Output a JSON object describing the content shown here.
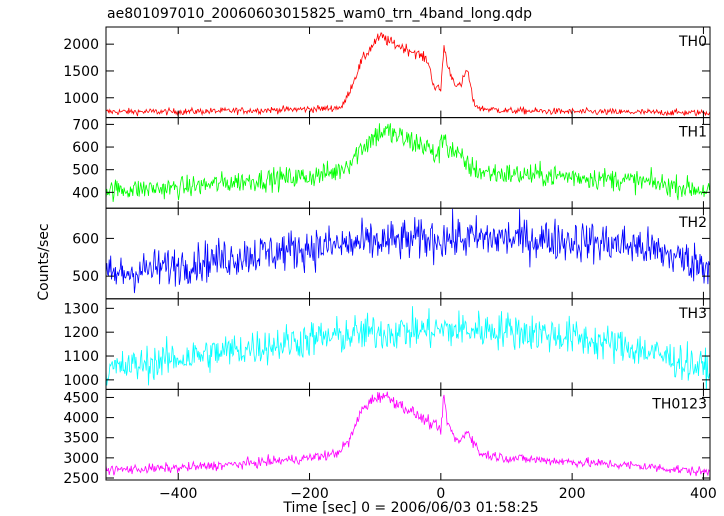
{
  "chart_data": {
    "type": "line",
    "title": "ae801097010_20060603015825_wam0_trn_4band_long.qdp",
    "xlabel": "Time [sec] 0 = 2006/06/03 01:58:25",
    "ylabel": "Counts/sec",
    "xlim": [
      -510,
      410
    ],
    "x_ticks": [
      -400,
      -200,
      0,
      200,
      400
    ],
    "grid": false,
    "panels": [
      {
        "name": "TH0",
        "color": "#ff0000",
        "ylim": [
          630,
          2320
        ],
        "y_ticks": [
          1000,
          1500,
          2000
        ],
        "x": [
          -510,
          -400,
          -300,
          -200,
          -170,
          -150,
          -140,
          -120,
          -100,
          -90,
          -80,
          -60,
          -40,
          -20,
          -10,
          0,
          5,
          10,
          20,
          30,
          40,
          50,
          60,
          100,
          200,
          300,
          400
        ],
        "values": [
          740,
          740,
          760,
          790,
          800,
          830,
          1100,
          1700,
          2050,
          2150,
          2050,
          1950,
          1850,
          1700,
          1200,
          1150,
          2000,
          1600,
          1300,
          1200,
          1550,
          900,
          800,
          760,
          740,
          730,
          720
        ]
      },
      {
        "name": "TH1",
        "color": "#00ff00",
        "ylim": [
          330,
          730
        ],
        "y_ticks": [
          400,
          500,
          600,
          700
        ],
        "x": [
          -510,
          -400,
          -300,
          -200,
          -160,
          -140,
          -120,
          -100,
          -90,
          -80,
          -60,
          -40,
          -20,
          -10,
          0,
          5,
          10,
          20,
          40,
          60,
          100,
          200,
          300,
          400
        ],
        "values": [
          410,
          420,
          450,
          470,
          490,
          530,
          600,
          650,
          670,
          665,
          640,
          620,
          600,
          560,
          590,
          670,
          600,
          580,
          520,
          490,
          480,
          470,
          450,
          410
        ]
      },
      {
        "name": "TH2",
        "color": "#0000ff",
        "ylim": [
          440,
          680
        ],
        "y_ticks": [
          500,
          600
        ],
        "x": [
          -510,
          -400,
          -300,
          -200,
          -100,
          0,
          100,
          200,
          300,
          400
        ],
        "values": [
          500,
          530,
          555,
          575,
          590,
          600,
          600,
          595,
          580,
          530
        ]
      },
      {
        "name": "TH3",
        "color": "#00ffff",
        "ylim": [
          960,
          1340
        ],
        "y_ticks": [
          1000,
          1100,
          1200,
          1300
        ],
        "x": [
          -510,
          -400,
          -300,
          -200,
          -100,
          0,
          100,
          200,
          300,
          400
        ],
        "values": [
          1040,
          1090,
          1130,
          1170,
          1200,
          1210,
          1210,
          1180,
          1130,
          1050
        ]
      },
      {
        "name": "TH0123",
        "color": "#ff00ff",
        "ylim": [
          2450,
          4700
        ],
        "y_ticks": [
          2500,
          3000,
          3500,
          4000,
          4500
        ],
        "x": [
          -510,
          -400,
          -300,
          -200,
          -160,
          -140,
          -120,
          -100,
          -90,
          -80,
          -60,
          -40,
          -20,
          -10,
          0,
          5,
          10,
          20,
          30,
          40,
          60,
          100,
          200,
          300,
          400
        ],
        "values": [
          2700,
          2750,
          2850,
          3000,
          3100,
          3400,
          4200,
          4500,
          4550,
          4500,
          4300,
          4100,
          3900,
          3800,
          3700,
          4500,
          3900,
          3500,
          3400,
          3700,
          3100,
          3000,
          2900,
          2800,
          2650
        ]
      }
    ]
  }
}
